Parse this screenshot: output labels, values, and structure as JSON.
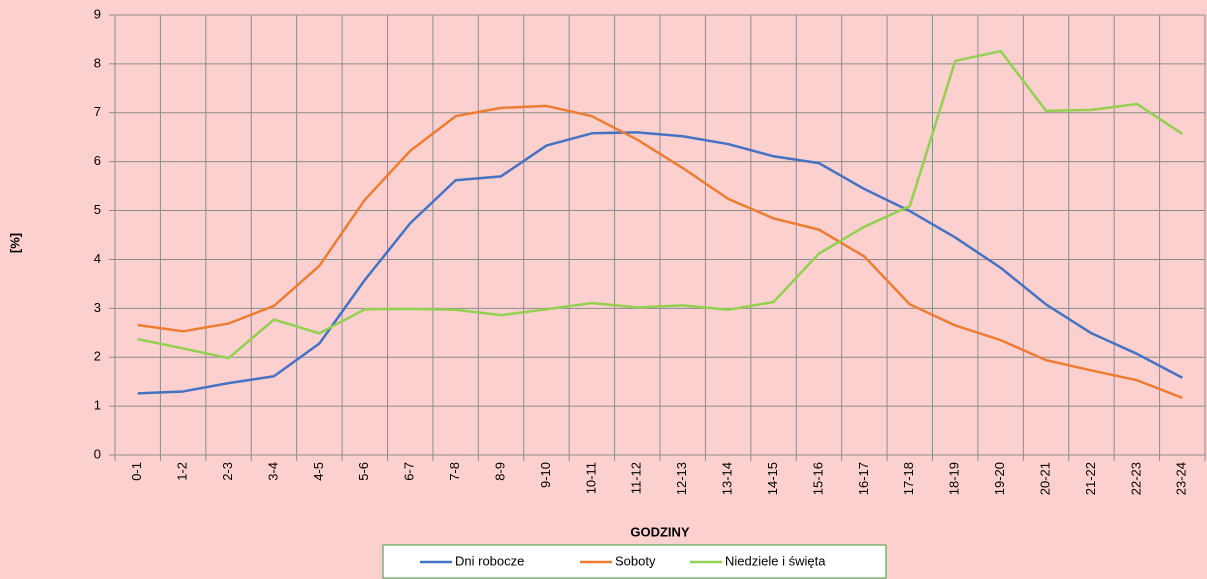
{
  "chart_data": {
    "type": "line",
    "xlabel": "GODZINY",
    "ylabel": "[%]",
    "categories": [
      "0-1",
      "1-2",
      "2-3",
      "3-4",
      "4-5",
      "5-6",
      "6-7",
      "7-8",
      "8-9",
      "9-10",
      "10-11",
      "11-12",
      "12-13",
      "13-14",
      "14-15",
      "15-16",
      "16-17",
      "17-18",
      "18-19",
      "19-20",
      "20-21",
      "21-22",
      "22-23",
      "23-24"
    ],
    "series": [
      {
        "name": "Dni robocze",
        "color": "#4472c4",
        "values": [
          1.26,
          1.3,
          1.47,
          1.61,
          2.28,
          3.58,
          4.74,
          5.62,
          5.7,
          6.33,
          6.58,
          6.6,
          6.52,
          6.36,
          6.11,
          5.97,
          5.44,
          4.99,
          4.45,
          3.83,
          3.08,
          2.49,
          2.07,
          1.58
        ]
      },
      {
        "name": "Soboty",
        "color": "#ed7d31",
        "values": [
          2.66,
          2.53,
          2.69,
          3.05,
          3.87,
          5.22,
          6.22,
          6.93,
          7.1,
          7.14,
          6.93,
          6.45,
          5.87,
          5.24,
          4.84,
          4.61,
          4.06,
          3.08,
          2.65,
          2.35,
          1.94,
          1.73,
          1.53,
          1.17
        ]
      },
      {
        "name": "Niedziele i święta",
        "color": "#92d050",
        "values": [
          2.37,
          2.18,
          1.98,
          2.77,
          2.49,
          2.98,
          2.99,
          2.97,
          2.86,
          2.98,
          3.11,
          3.02,
          3.06,
          2.97,
          3.13,
          4.12,
          4.67,
          5.09,
          8.06,
          8.26,
          7.04,
          7.06,
          7.18,
          6.57
        ]
      }
    ],
    "ylim": [
      0,
      9
    ],
    "yticks": [
      0,
      1,
      2,
      3,
      4,
      5,
      6,
      7,
      8,
      9
    ],
    "grid": true,
    "legend": "bottom"
  }
}
